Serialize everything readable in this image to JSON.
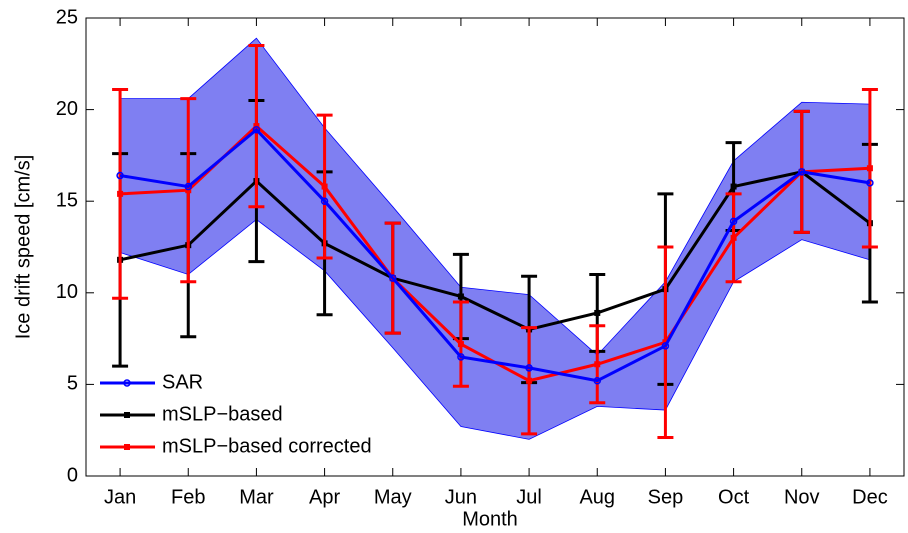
{
  "chart_data": {
    "type": "line",
    "x_label": "Month",
    "y_label": "Ice drift speed [cm/s]",
    "categories": [
      "Jan",
      "Feb",
      "Mar",
      "Apr",
      "May",
      "Jun",
      "Jul",
      "Aug",
      "Sep",
      "Oct",
      "Nov",
      "Dec"
    ],
    "ylim": [
      0,
      25
    ],
    "yticks": [
      0,
      5,
      10,
      15,
      20,
      25
    ],
    "grid": false,
    "legend": "lower left",
    "band_color": "#7f7ff2",
    "series": [
      {
        "name": "SAR",
        "color": "#0000ff",
        "marker": "circle",
        "values": [
          16.4,
          15.8,
          18.9,
          15.0,
          10.8,
          6.5,
          5.9,
          5.2,
          7.1,
          13.9,
          16.6,
          16.0
        ],
        "upper": [
          20.6,
          20.6,
          23.9,
          19.0,
          14.7,
          10.3,
          9.9,
          6.6,
          10.6,
          17.2,
          20.4,
          20.3
        ],
        "lower": [
          12.2,
          11.0,
          14.0,
          11.2,
          7.0,
          2.7,
          2.0,
          3.8,
          3.6,
          10.6,
          12.9,
          11.8
        ]
      },
      {
        "name": "mSLP−based",
        "color": "#000000",
        "marker": "square",
        "values": [
          11.8,
          12.6,
          16.1,
          12.7,
          10.8,
          9.8,
          8.0,
          8.9,
          10.2,
          15.8,
          16.6,
          13.8
        ],
        "errors": [
          5.8,
          5.0,
          4.4,
          3.9,
          3.0,
          2.3,
          2.9,
          2.1,
          5.2,
          2.4,
          3.3,
          4.3
        ]
      },
      {
        "name": "mSLP−based corrected",
        "color": "#ff0000",
        "marker": "square",
        "values": [
          15.4,
          15.6,
          19.1,
          15.8,
          10.8,
          7.2,
          5.2,
          6.1,
          7.3,
          13.0,
          16.6,
          16.8
        ],
        "errors": [
          5.7,
          5.0,
          4.4,
          3.9,
          3.0,
          2.3,
          2.9,
          2.1,
          5.2,
          2.4,
          3.3,
          4.3
        ]
      }
    ]
  }
}
